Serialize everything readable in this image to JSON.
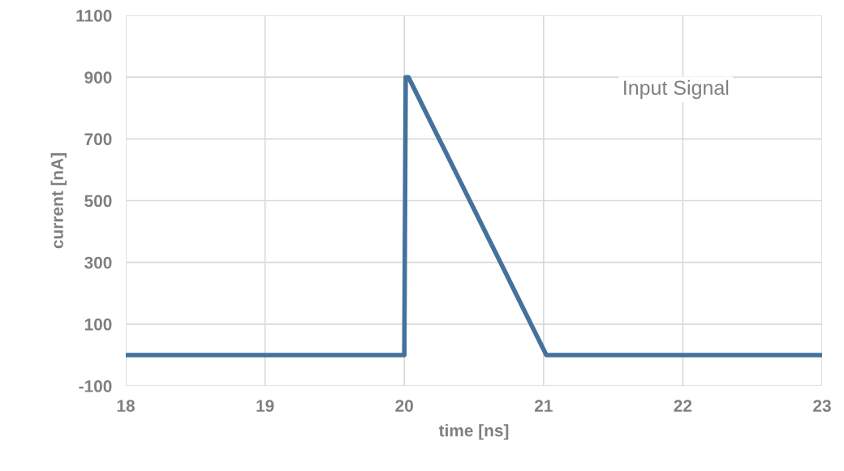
{
  "chart_data": {
    "type": "line",
    "xlabel": "time [ns]",
    "ylabel": "current [nA]",
    "annotations": [
      "Input Signal"
    ],
    "series": [
      {
        "color": "#44729d",
        "x": [
          18,
          20,
          20.01,
          20.03,
          20.1,
          20.2,
          20.3,
          20.4,
          20.5,
          20.6,
          20.7,
          20.8,
          20.9,
          21.02,
          23
        ],
        "values": [
          0,
          0,
          900,
          900,
          836,
          745,
          655,
          564,
          473,
          382,
          291,
          200,
          109,
          0,
          0
        ]
      }
    ],
    "xlim": [
      18,
      23
    ],
    "xticks": [
      18,
      19,
      20,
      21,
      22,
      23
    ],
    "ylim": [
      -100,
      1100
    ],
    "yticks": [
      -100,
      100,
      300,
      500,
      700,
      900,
      1100
    ],
    "grid": true,
    "marker": "none",
    "line_style": "solid",
    "legend": false
  }
}
